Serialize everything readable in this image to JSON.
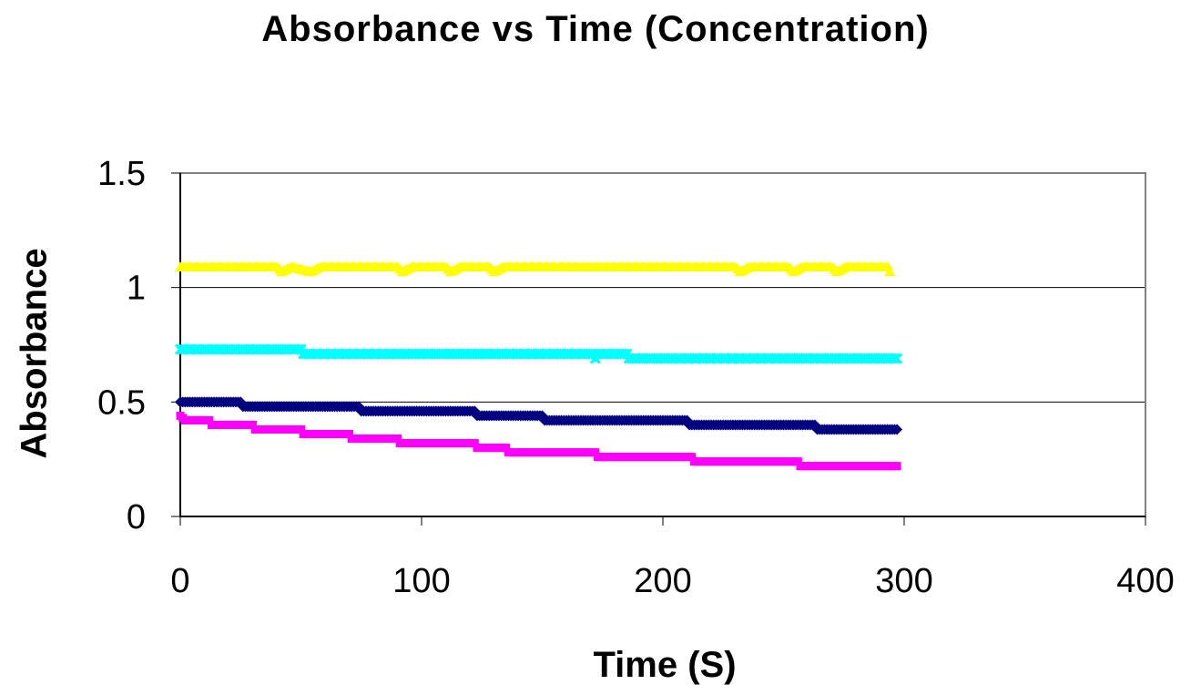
{
  "chart_data": {
    "type": "scatter",
    "title": "Absorbance vs Time (Concentration)",
    "xlabel": "Time (S)",
    "ylabel": "Absorbance",
    "xlim": [
      0,
      400
    ],
    "ylim": [
      0,
      1.5
    ],
    "xticks": [
      "0",
      "100",
      "200",
      "300",
      "400"
    ],
    "yticks": [
      "0",
      "0.5",
      "1",
      "1.5"
    ],
    "grid": "horizontal major gridlines",
    "legend": "none",
    "series": [
      {
        "marker": "triangle",
        "color": "#FFFF00",
        "points": [
          [
            0,
            1.09
          ],
          [
            40,
            1.09
          ],
          [
            42,
            1.07
          ],
          [
            46,
            1.09
          ],
          [
            54,
            1.07
          ],
          [
            58,
            1.09
          ],
          [
            90,
            1.09
          ],
          [
            92,
            1.07
          ],
          [
            96,
            1.09
          ],
          [
            110,
            1.09
          ],
          [
            112,
            1.07
          ],
          [
            116,
            1.09
          ],
          [
            128,
            1.09
          ],
          [
            130,
            1.07
          ],
          [
            134,
            1.09
          ],
          [
            230,
            1.09
          ],
          [
            232,
            1.07
          ],
          [
            236,
            1.09
          ],
          [
            252,
            1.09
          ],
          [
            254,
            1.07
          ],
          [
            258,
            1.09
          ],
          [
            270,
            1.09
          ],
          [
            272,
            1.07
          ],
          [
            276,
            1.09
          ],
          [
            293,
            1.09
          ],
          [
            294,
            1.07
          ]
        ]
      },
      {
        "marker": "x",
        "color": "#00FFFF",
        "points": [
          [
            0,
            0.73
          ],
          [
            50,
            0.73
          ],
          [
            51,
            0.71
          ],
          [
            171,
            0.71
          ],
          [
            172,
            0.69
          ],
          [
            173,
            0.71
          ],
          [
            185,
            0.71
          ],
          [
            186,
            0.69
          ],
          [
            297,
            0.69
          ]
        ]
      },
      {
        "marker": "diamond",
        "color": "#000080",
        "points": [
          [
            0,
            0.5
          ],
          [
            25,
            0.5
          ],
          [
            26,
            0.48
          ],
          [
            74,
            0.48
          ],
          [
            75,
            0.46
          ],
          [
            122,
            0.46
          ],
          [
            123,
            0.44
          ],
          [
            150,
            0.44
          ],
          [
            151,
            0.42
          ],
          [
            210,
            0.42
          ],
          [
            211,
            0.4
          ],
          [
            263,
            0.4
          ],
          [
            264,
            0.38
          ],
          [
            297,
            0.38
          ]
        ]
      },
      {
        "marker": "square",
        "color": "#FF00FF",
        "points": [
          [
            0,
            0.44
          ],
          [
            2,
            0.42
          ],
          [
            12,
            0.42
          ],
          [
            13,
            0.4
          ],
          [
            30,
            0.4
          ],
          [
            31,
            0.38
          ],
          [
            50,
            0.38
          ],
          [
            51,
            0.36
          ],
          [
            70,
            0.36
          ],
          [
            71,
            0.34
          ],
          [
            90,
            0.34
          ],
          [
            91,
            0.32
          ],
          [
            122,
            0.32
          ],
          [
            123,
            0.3
          ],
          [
            135,
            0.3
          ],
          [
            136,
            0.28
          ],
          [
            172,
            0.28
          ],
          [
            173,
            0.26
          ],
          [
            212,
            0.26
          ],
          [
            213,
            0.24
          ],
          [
            256,
            0.24
          ],
          [
            257,
            0.22
          ],
          [
            297,
            0.22
          ]
        ]
      }
    ]
  }
}
